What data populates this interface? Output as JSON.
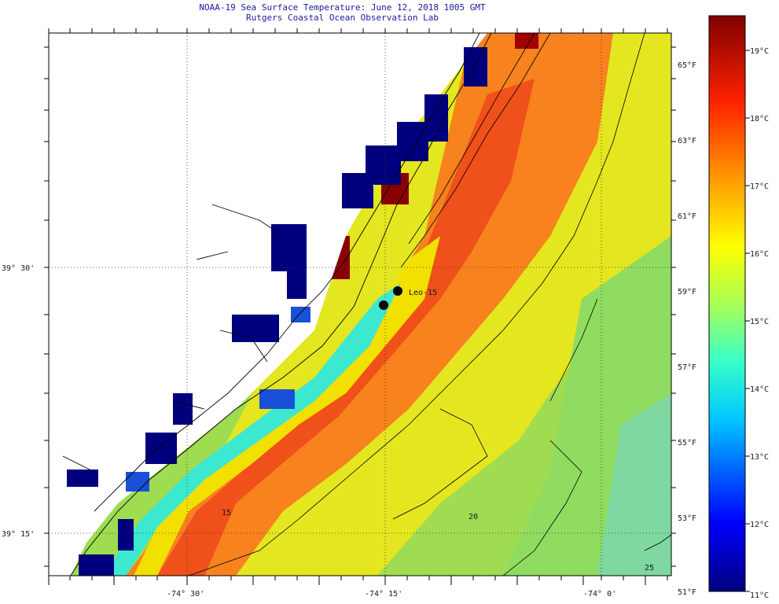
{
  "title": {
    "line1": "NOAA-19 Sea Surface Temperature:  June 12, 2018 1005 GMT",
    "line2": "Rutgers Coastal Ocean Observation Lab"
  },
  "axes": {
    "lat_labels": [
      "39° 30'",
      "39° 15'"
    ],
    "lon_labels": [
      "-74° 30'",
      "-74° 15'",
      "-74° 0'"
    ]
  },
  "fahrenheit_scale": [
    "65°F",
    "63°F",
    "61°F",
    "59°F",
    "57°F",
    "55°F",
    "53°F",
    "51°F"
  ],
  "celsius_scale": [
    "19°C",
    "18°C",
    "17°C",
    "16°C",
    "15°C",
    "14°C",
    "13°C",
    "12°C",
    "11°C"
  ],
  "station": {
    "label": "Leo-15"
  },
  "isobath_labels": [
    "15",
    "20",
    "25"
  ],
  "colors": {
    "dark_red": "#7a0000",
    "red": "#e2231a",
    "orange": "#f7821e",
    "yellow": "#f0e500",
    "green": "#9bdc4e",
    "cyan": "#1fe6d6",
    "blue": "#1a4fd8",
    "navy": "#00007f",
    "title_text": "#1a1aa0"
  }
}
